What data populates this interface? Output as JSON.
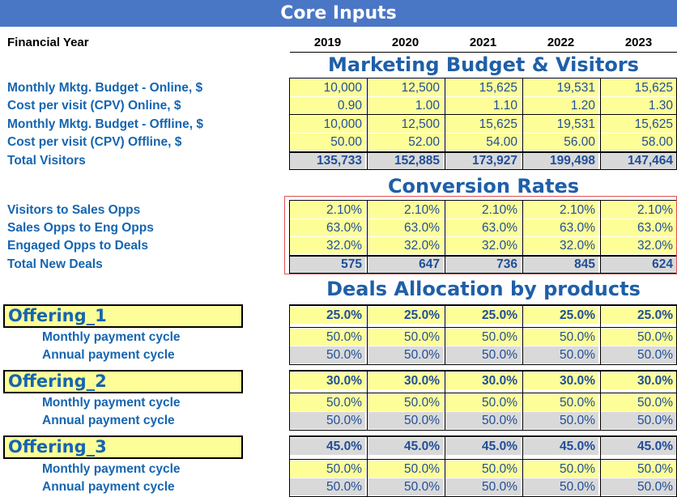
{
  "title": "Core Inputs",
  "financial_year_label": "Financial Year",
  "years": [
    "2019",
    "2020",
    "2021",
    "2022",
    "2023"
  ],
  "sections": {
    "marketing": "Marketing Budget & Visitors",
    "conversion": "Conversion Rates",
    "deals": "Deals Allocation by products"
  },
  "marketing_rows": [
    {
      "label": "Monthly Mktg. Budget - Online, $",
      "values": [
        "10,000",
        "12,500",
        "15,625",
        "19,531",
        "15,625"
      ]
    },
    {
      "label": "Cost per visit (CPV) Online, $",
      "values": [
        "0.90",
        "1.00",
        "1.10",
        "1.20",
        "1.30"
      ]
    },
    {
      "label": "Monthly Mktg. Budget - Offline, $",
      "values": [
        "10,000",
        "12,500",
        "15,625",
        "19,531",
        "15,625"
      ]
    },
    {
      "label": "Cost per visit (CPV) Offline, $",
      "values": [
        "50.00",
        "52.00",
        "54.00",
        "56.00",
        "58.00"
      ]
    },
    {
      "label": "Total Visitors",
      "values": [
        "135,733",
        "152,885",
        "173,927",
        "199,498",
        "147,464"
      ]
    }
  ],
  "conversion_rows": [
    {
      "label": "Visitors to Sales Opps",
      "values": [
        "2.10%",
        "2.10%",
        "2.10%",
        "2.10%",
        "2.10%"
      ]
    },
    {
      "label": "Sales Opps to Eng Opps",
      "values": [
        "63.0%",
        "63.0%",
        "63.0%",
        "63.0%",
        "63.0%"
      ]
    },
    {
      "label": "Engaged Opps to Deals",
      "values": [
        "32.0%",
        "32.0%",
        "32.0%",
        "32.0%",
        "32.0%"
      ]
    },
    {
      "label": "Total New Deals",
      "values": [
        "575",
        "647",
        "736",
        "845",
        "624"
      ]
    }
  ],
  "offerings": [
    {
      "name": "Offering_1",
      "share": [
        "25.0%",
        "25.0%",
        "25.0%",
        "25.0%",
        "25.0%"
      ],
      "monthly_label": "Monthly payment cycle",
      "monthly": [
        "50.0%",
        "50.0%",
        "50.0%",
        "50.0%",
        "50.0%"
      ],
      "annual_label": "Annual payment cycle",
      "annual": [
        "50.0%",
        "50.0%",
        "50.0%",
        "50.0%",
        "50.0%"
      ]
    },
    {
      "name": "Offering_2",
      "share": [
        "30.0%",
        "30.0%",
        "30.0%",
        "30.0%",
        "30.0%"
      ],
      "monthly_label": "Monthly payment cycle",
      "monthly": [
        "50.0%",
        "50.0%",
        "50.0%",
        "50.0%",
        "50.0%"
      ],
      "annual_label": "Annual payment cycle",
      "annual": [
        "50.0%",
        "50.0%",
        "50.0%",
        "50.0%",
        "50.0%"
      ]
    },
    {
      "name": "Offering_3",
      "share": [
        "45.0%",
        "45.0%",
        "45.0%",
        "45.0%",
        "45.0%"
      ],
      "monthly_label": "Monthly payment cycle",
      "monthly": [
        "50.0%",
        "50.0%",
        "50.0%",
        "50.0%",
        "50.0%"
      ],
      "annual_label": "Annual payment cycle",
      "annual": [
        "50.0%",
        "50.0%",
        "50.0%",
        "50.0%",
        "50.0%"
      ]
    }
  ]
}
